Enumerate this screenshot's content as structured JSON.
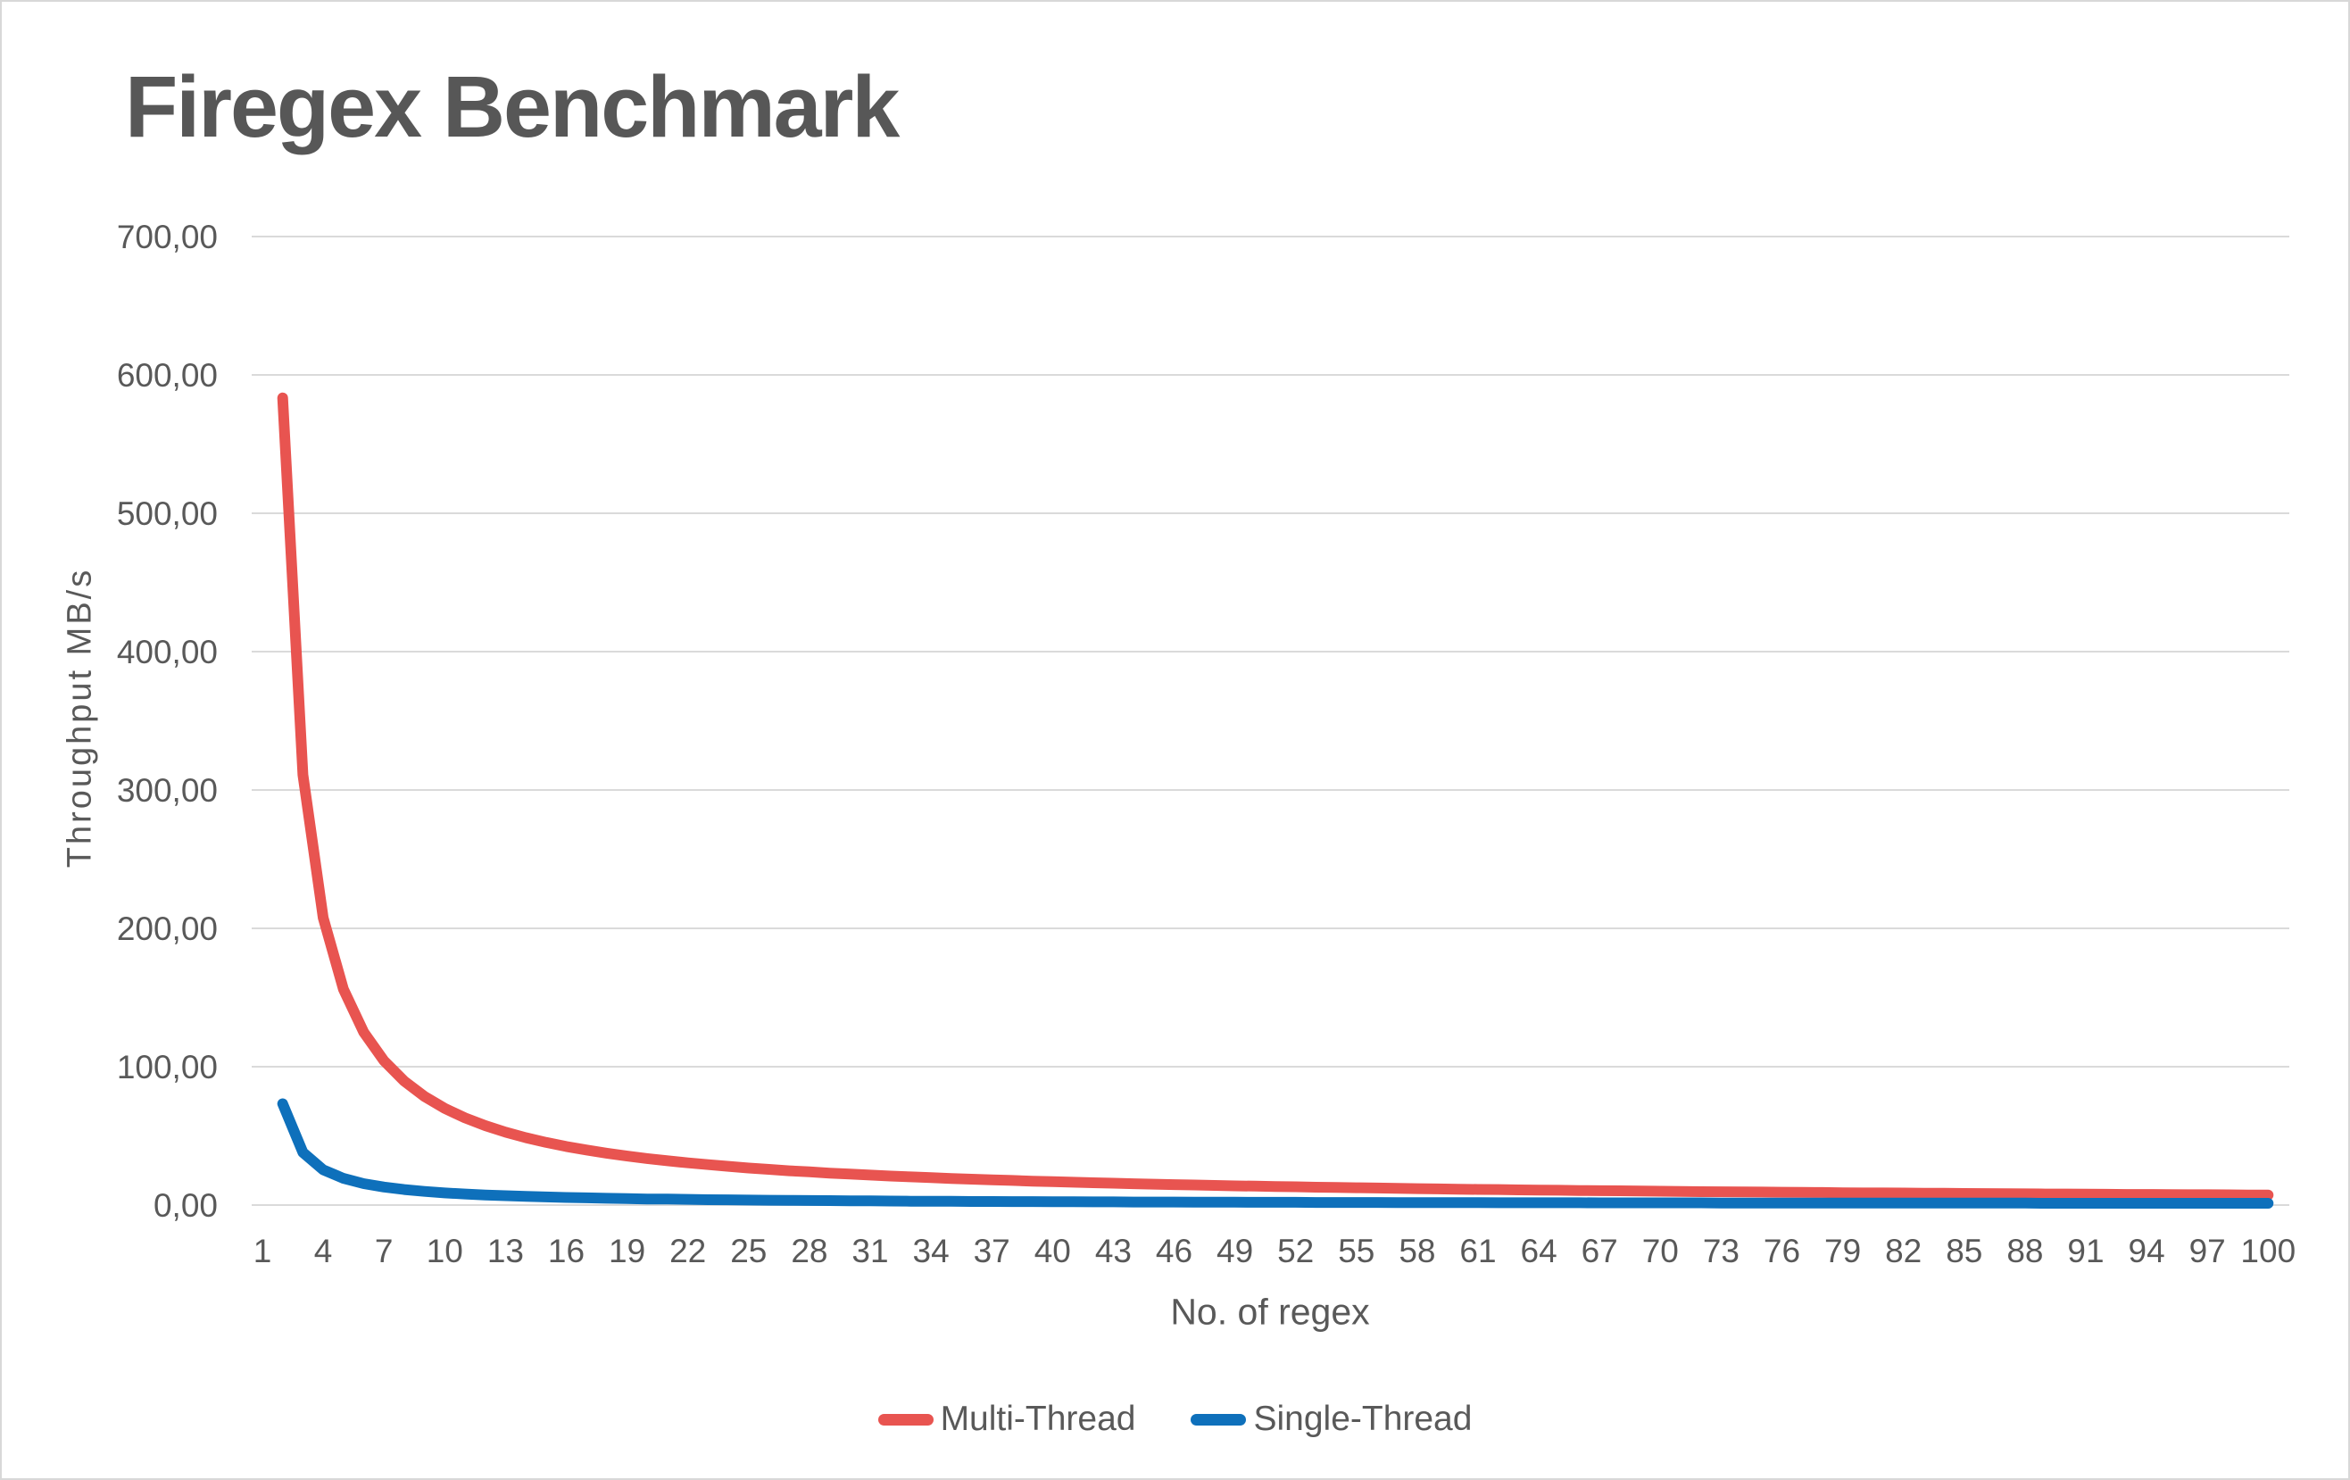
{
  "page": {
    "background_color": "#ffffff",
    "border_color": "#d8d8d8",
    "text_color": "#595959",
    "gridline_color": "#dadada"
  },
  "chart_data": {
    "type": "line",
    "title": "Firegex Benchmark",
    "xlabel": "No. of regex",
    "ylabel": "Throughput MB/s",
    "grid": true,
    "legend_position": "bottom",
    "decimal_separator": ",",
    "ylim": [
      0,
      700
    ],
    "ytick_values": [
      0,
      100,
      200,
      300,
      400,
      500,
      600,
      700
    ],
    "ytick_labels": [
      "0,00",
      "100,00",
      "200,00",
      "300,00",
      "400,00",
      "500,00",
      "600,00",
      "700,00"
    ],
    "xtick_labels": [
      "1",
      "4",
      "7",
      "10",
      "13",
      "16",
      "19",
      "22",
      "25",
      "28",
      "31",
      "34",
      "37",
      "40",
      "43",
      "46",
      "49",
      "52",
      "55",
      "58",
      "61",
      "64",
      "67",
      "70",
      "73",
      "76",
      "79",
      "82",
      "85",
      "88",
      "91",
      "94",
      "97",
      "100"
    ],
    "x": [
      2,
      3,
      4,
      5,
      6,
      7,
      8,
      9,
      10,
      11,
      12,
      13,
      14,
      15,
      16,
      17,
      18,
      19,
      20,
      21,
      22,
      23,
      24,
      25,
      26,
      27,
      28,
      29,
      30,
      31,
      32,
      33,
      34,
      35,
      36,
      37,
      38,
      39,
      40,
      41,
      42,
      43,
      44,
      45,
      46,
      47,
      48,
      49,
      50,
      51,
      52,
      53,
      54,
      55,
      56,
      57,
      58,
      59,
      60,
      61,
      62,
      63,
      64,
      65,
      66,
      67,
      68,
      69,
      70,
      71,
      72,
      73,
      74,
      75,
      76,
      77,
      78,
      79,
      80,
      81,
      82,
      83,
      84,
      85,
      86,
      87,
      88,
      89,
      90,
      91,
      92,
      93,
      94,
      95,
      96,
      97,
      98,
      99,
      100
    ],
    "series": [
      {
        "name": "Multi-Thread",
        "color": "#e85450",
        "values": [
          583.4,
          311.0,
          207.7,
          156.0,
          125.0,
          104.3,
          89.6,
          78.5,
          69.9,
          63.0,
          57.4,
          52.7,
          48.7,
          45.3,
          42.3,
          39.8,
          37.5,
          35.4,
          33.6,
          32.0,
          30.5,
          29.2,
          28.0,
          26.8,
          25.8,
          24.8,
          24.0,
          23.1,
          22.4,
          21.7,
          21.0,
          20.4,
          19.8,
          19.2,
          18.7,
          18.2,
          17.8,
          17.3,
          16.9,
          16.5,
          16.1,
          15.8,
          15.4,
          15.1,
          14.8,
          14.5,
          14.2,
          13.9,
          13.7,
          13.4,
          13.2,
          12.9,
          12.7,
          12.5,
          12.3,
          12.1,
          11.9,
          11.7,
          11.5,
          11.3,
          11.2,
          11.0,
          10.8,
          10.7,
          10.5,
          10.4,
          10.3,
          10.1,
          10.0,
          9.9,
          9.7,
          9.6,
          9.5,
          9.4,
          9.3,
          9.2,
          9.1,
          8.9,
          8.8,
          8.8,
          8.7,
          8.6,
          8.5,
          8.4,
          8.3,
          8.2,
          8.1,
          8.0,
          8.0,
          7.9,
          7.8,
          7.7,
          7.7,
          7.6,
          7.5,
          7.5,
          7.4,
          7.3,
          7.3
        ]
      },
      {
        "name": "Single-Thread",
        "color": "#0e70bb",
        "values": [
          73.2,
          38.0,
          25.5,
          19.3,
          15.5,
          13.0,
          11.2,
          9.9,
          8.8,
          8.0,
          7.3,
          6.8,
          6.3,
          5.9,
          5.5,
          5.2,
          4.9,
          4.7,
          4.4,
          4.3,
          4.1,
          3.9,
          3.8,
          3.6,
          3.5,
          3.4,
          3.3,
          3.2,
          3.1,
          3.0,
          2.9,
          2.8,
          2.8,
          2.7,
          2.6,
          2.6,
          2.5,
          2.5,
          2.4,
          2.4,
          2.3,
          2.3,
          2.2,
          2.2,
          2.2,
          2.1,
          2.1,
          2.1,
          2.0,
          2.0,
          2.0,
          1.9,
          1.9,
          1.9,
          1.9,
          1.8,
          1.8,
          1.8,
          1.8,
          1.8,
          1.7,
          1.7,
          1.7,
          1.7,
          1.7,
          1.6,
          1.6,
          1.6,
          1.6,
          1.6,
          1.6,
          1.5,
          1.5,
          1.5,
          1.5,
          1.5,
          1.5,
          1.5,
          1.5,
          1.4,
          1.4,
          1.4,
          1.4,
          1.4,
          1.4,
          1.4,
          1.4,
          1.3,
          1.3,
          1.3,
          1.3,
          1.3,
          1.3,
          1.3,
          1.3,
          1.3,
          1.3,
          1.3,
          1.3
        ]
      }
    ]
  }
}
